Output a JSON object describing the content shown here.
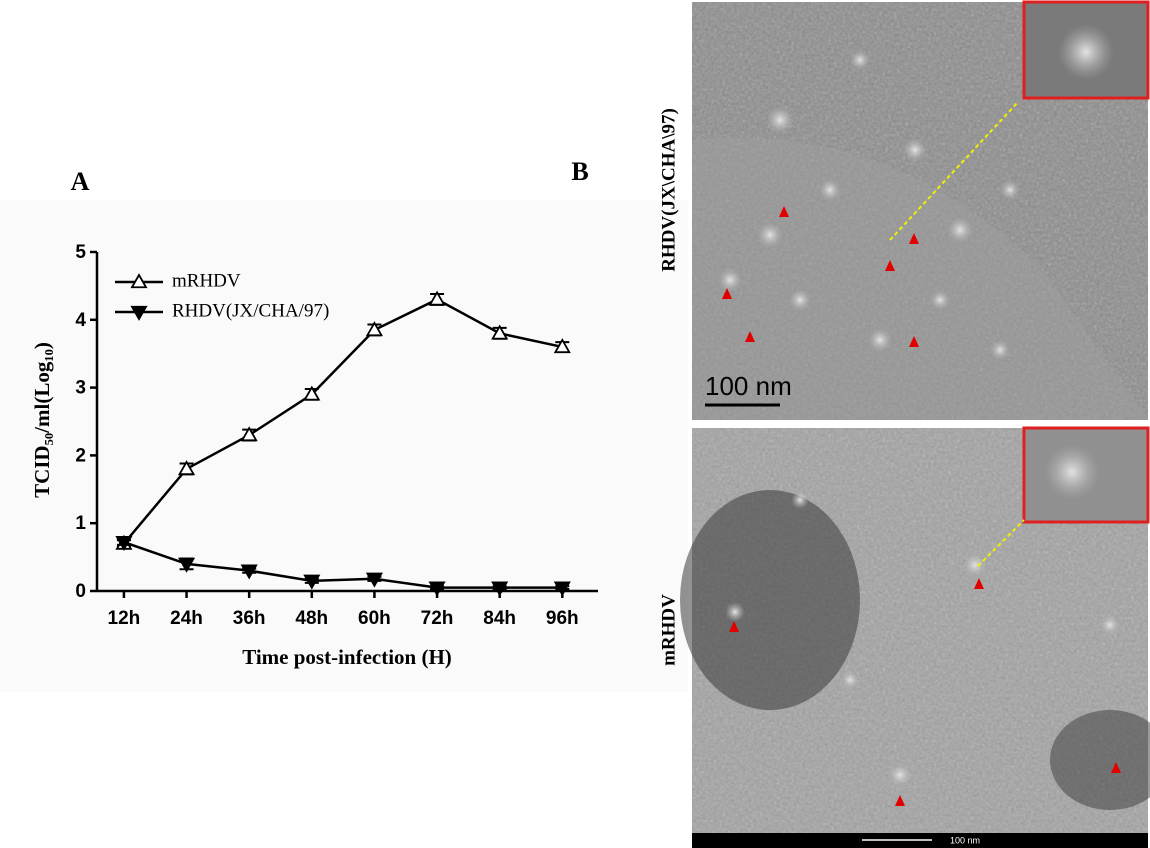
{
  "chart_data": {
    "type": "line",
    "y_label": "TCID₅₀/ml(Log₁₀)",
    "x_label": "Time post-infection (H)",
    "categories": [
      "12h",
      "24h",
      "36h",
      "48h",
      "60h",
      "72h",
      "84h",
      "96h"
    ],
    "series": [
      {
        "name": "mRHDV",
        "color": "#000000",
        "marker": "triangle-up-open",
        "values": [
          0.7,
          1.8,
          2.3,
          2.9,
          3.85,
          4.3,
          3.8,
          3.6
        ],
        "errors": [
          0.05,
          0.08,
          0.08,
          0.08,
          0.08,
          0.08,
          0.08,
          0.07
        ]
      },
      {
        "name": "RHDV(JX/CHA/97)",
        "color": "#000000",
        "marker": "triangle-down-filled",
        "values": [
          0.72,
          0.4,
          0.3,
          0.15,
          0.18,
          0.05,
          0.05,
          0.05
        ],
        "errors": [
          0.04,
          0.08,
          0.03,
          0.03,
          0.03,
          0.02,
          0.02,
          0.02
        ]
      }
    ],
    "ylim": [
      0,
      5
    ],
    "yticks": [
      0,
      1,
      2,
      3,
      4,
      5
    ],
    "legend": "upper left"
  },
  "panel_labels": [
    "A",
    "B"
  ],
  "images": [
    {
      "label": "RHDV(JX\\CHA\\97)",
      "scale_bar": "100 nm"
    },
    {
      "label": "mRHDV",
      "scale_bar": "100 nm"
    }
  ]
}
